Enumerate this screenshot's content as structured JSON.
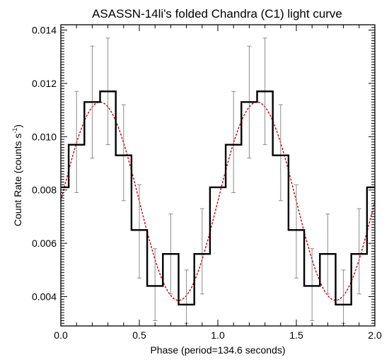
{
  "chart_data": {
    "type": "line",
    "title": "ASASSN-14li's folded Chandra (C1) light curve",
    "xlabel": "Phase (period=134.6 seconds)",
    "ylabel_main": "Count Rate (counts s",
    "ylabel_sup": "-1",
    "ylabel_close": ")",
    "xlim": [
      0.0,
      2.0
    ],
    "ylim": [
      0.0029,
      0.0142
    ],
    "x_ticks": [
      {
        "value": 0.0,
        "label": "0.0"
      },
      {
        "value": 0.5,
        "label": "0.5"
      },
      {
        "value": 1.0,
        "label": "1.0"
      },
      {
        "value": 1.5,
        "label": "1.5"
      },
      {
        "value": 2.0,
        "label": "2.0"
      }
    ],
    "y_ticks": [
      {
        "value": 0.004,
        "label": "0.004"
      },
      {
        "value": 0.006,
        "label": "0.006"
      },
      {
        "value": 0.008,
        "label": "0.008"
      },
      {
        "value": 0.01,
        "label": "0.010"
      },
      {
        "value": 0.012,
        "label": "0.012"
      },
      {
        "value": 0.014,
        "label": "0.014"
      }
    ],
    "bin_width": 0.1,
    "bin_edges": [
      0.0,
      0.05,
      0.15,
      0.25,
      0.35,
      0.45,
      0.55,
      0.65,
      0.75,
      0.85,
      0.95,
      1.05,
      1.15,
      1.25,
      1.35,
      1.45,
      1.55,
      1.65,
      1.75,
      1.85,
      1.95,
      2.0
    ],
    "series": [
      {
        "style": "histogram",
        "color": "#000000",
        "x": [
          0.0,
          0.1,
          0.2,
          0.3,
          0.4,
          0.5,
          0.6,
          0.7,
          0.8,
          0.9,
          1.0,
          1.1,
          1.2,
          1.3,
          1.4,
          1.5,
          1.6,
          1.7,
          1.8,
          1.9,
          2.0
        ],
        "values": [
          0.0081,
          0.0097,
          0.0113,
          0.0117,
          0.0093,
          0.0065,
          0.0044,
          0.0056,
          0.0037,
          0.0056,
          0.0081,
          0.0097,
          0.0113,
          0.0117,
          0.0093,
          0.0065,
          0.0044,
          0.0056,
          0.0037,
          0.0056,
          0.0081
        ],
        "error_low": [
          null,
          0.0079,
          0.0092,
          0.0097,
          0.0076,
          0.0047,
          0.0031,
          0.0041,
          0.003,
          0.0041,
          null,
          0.0079,
          0.0092,
          0.0097,
          0.0076,
          0.0047,
          0.0031,
          0.0041,
          0.003,
          0.0041,
          null
        ],
        "error_high": [
          null,
          0.0117,
          0.0134,
          0.0137,
          0.0112,
          0.0082,
          0.0058,
          0.0071,
          0.005,
          0.0073,
          null,
          0.0117,
          0.0134,
          0.0137,
          0.0112,
          0.0082,
          0.0058,
          0.0071,
          0.005,
          0.0073,
          null
        ]
      },
      {
        "style": "sinusoid-fit",
        "color": "#cc0000",
        "mean": 0.00758,
        "amplitude": 0.00372,
        "peak_phase": 0.25
      }
    ],
    "grid": false,
    "legend": "none",
    "axis_color": "#000000",
    "errorbar_color": "#8c8c8c"
  }
}
